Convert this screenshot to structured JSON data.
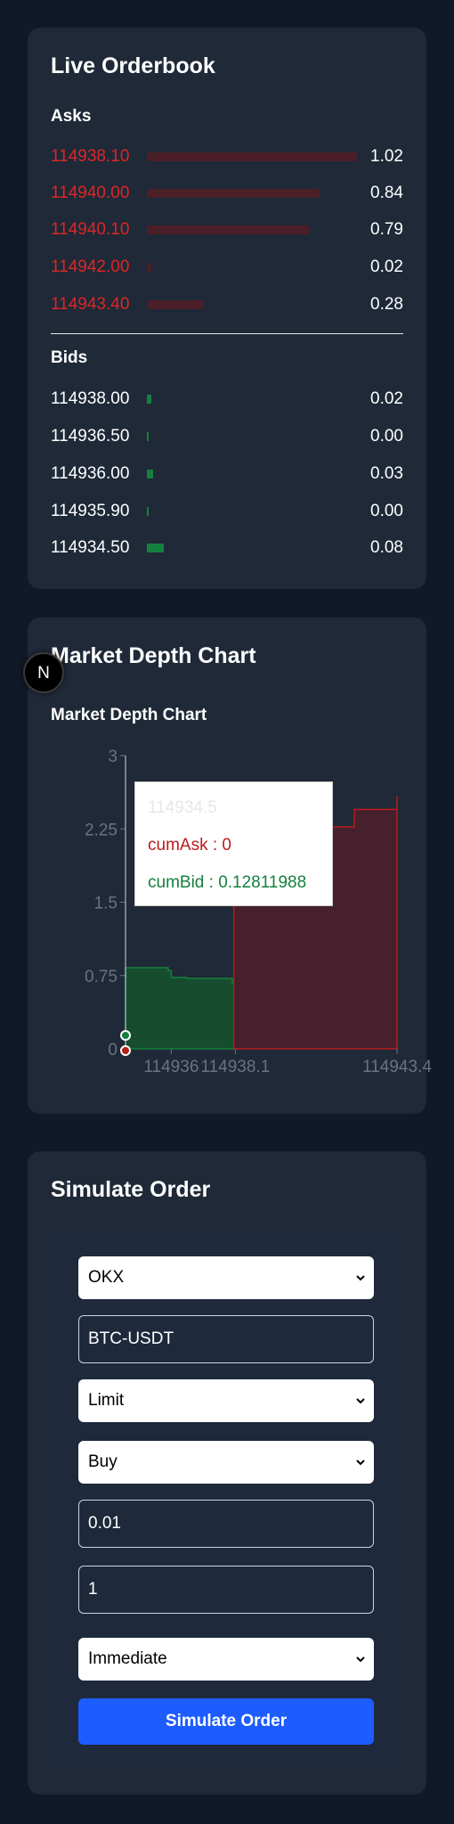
{
  "orderbook": {
    "title": "Live Orderbook",
    "asks_label": "Asks",
    "bids_label": "Bids",
    "asks": [
      {
        "price": "114938.10",
        "qty": "1.02",
        "depth": 1.0
      },
      {
        "price": "114940.00",
        "qty": "0.84",
        "depth": 0.82
      },
      {
        "price": "114940.10",
        "qty": "0.79",
        "depth": 0.77
      },
      {
        "price": "114942.00",
        "qty": "0.02",
        "depth": 0.02
      },
      {
        "price": "114943.40",
        "qty": "0.28",
        "depth": 0.27
      }
    ],
    "bids": [
      {
        "price": "114938.00",
        "qty": "0.02",
        "depth": 0.02
      },
      {
        "price": "114936.50",
        "qty": "0.00",
        "depth": 0.005
      },
      {
        "price": "114936.00",
        "qty": "0.03",
        "depth": 0.03
      },
      {
        "price": "114935.90",
        "qty": "0.00",
        "depth": 0.005
      },
      {
        "price": "114934.50",
        "qty": "0.08",
        "depth": 0.08
      }
    ],
    "colors": {
      "ask": "#dc2626",
      "ask_bar": "#4a1f28",
      "bid_bar": "#15803d"
    }
  },
  "depth_card": {
    "title": "Market Depth Chart",
    "badge_letter": "N"
  },
  "chart_data": {
    "type": "area",
    "title": "Market Depth Chart",
    "xlabel": "",
    "ylabel": "",
    "ylim": [
      0,
      3
    ],
    "yticks": [
      "0",
      "0.75",
      "1.5",
      "2.25",
      "3"
    ],
    "xticks": [
      "114936",
      "114938.1",
      "114943.4"
    ],
    "series": [
      {
        "name": "cumBid",
        "color": "#15803d",
        "x": [
          114934.5,
          114935.9,
          114936.0,
          114936.5,
          114938.0
        ],
        "y": [
          0.83,
          0.8,
          0.73,
          0.72,
          0.67
        ]
      },
      {
        "name": "cumAsk",
        "color": "#b91c1c",
        "x": [
          114938.1,
          114940.0,
          114940.1,
          114942.0,
          114943.4
        ],
        "y": [
          1.76,
          2.02,
          2.27,
          2.45,
          2.59
        ]
      }
    ],
    "tooltip": {
      "label": "114934.5",
      "ask_text": "cumAsk : 0",
      "bid_text": "cumBid : 0.12811988"
    }
  },
  "simulate": {
    "title": "Simulate Order",
    "venue": "OKX",
    "symbol": "BTC-USDT",
    "order_type": "Limit",
    "side": "Buy",
    "quantity": "0.01",
    "price_value": "1",
    "timing": "Immediate",
    "submit_label": "Simulate Order"
  }
}
